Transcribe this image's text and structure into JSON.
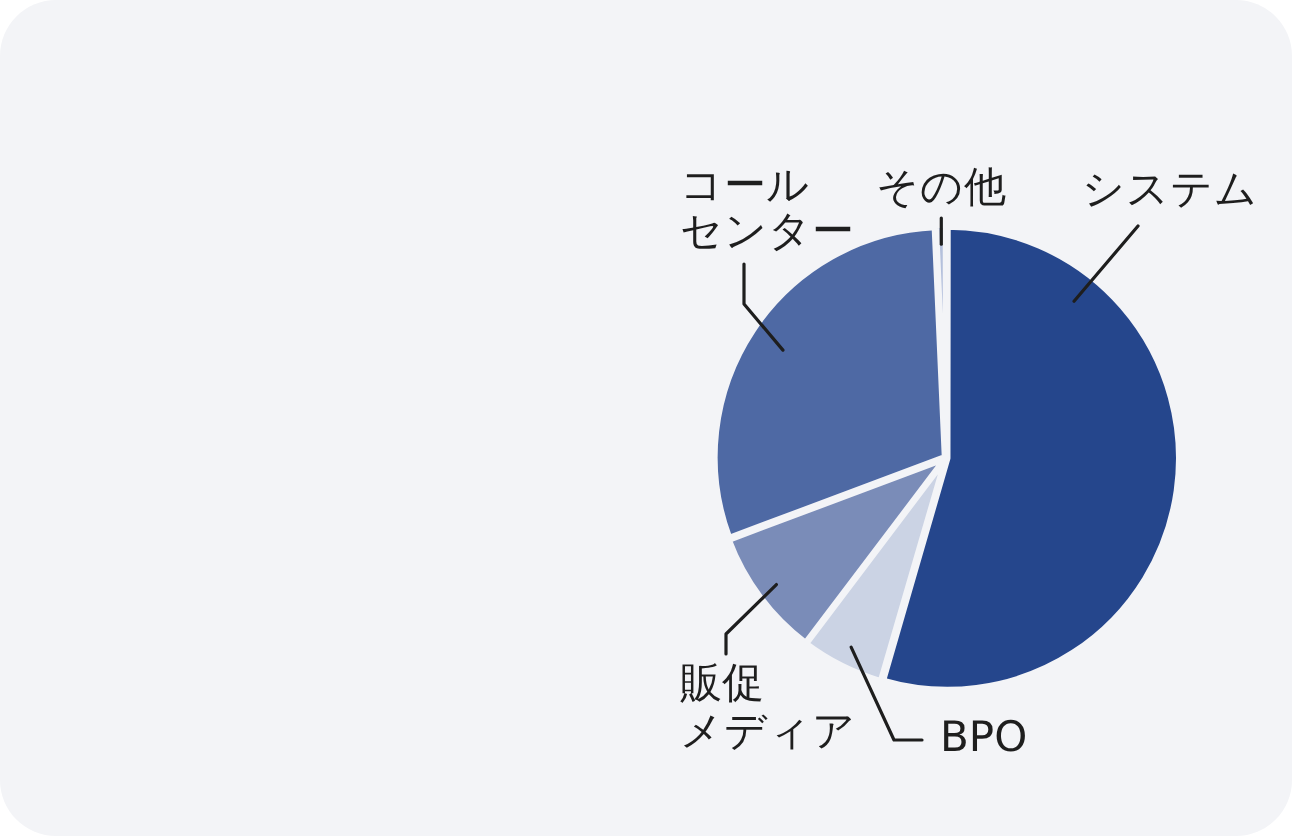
{
  "chart_data": {
    "type": "pie",
    "categories": [
      "システム",
      "BPO",
      "販促メディア",
      "コールセンター",
      "その他"
    ],
    "values": [
      54.5,
      5.8,
      9,
      30,
      0.7
    ],
    "colors": [
      "#25468c",
      "#cbd3e4",
      "#7a8cb8",
      "#4e69a4",
      "#b4c0dc"
    ],
    "legend": false
  }
}
